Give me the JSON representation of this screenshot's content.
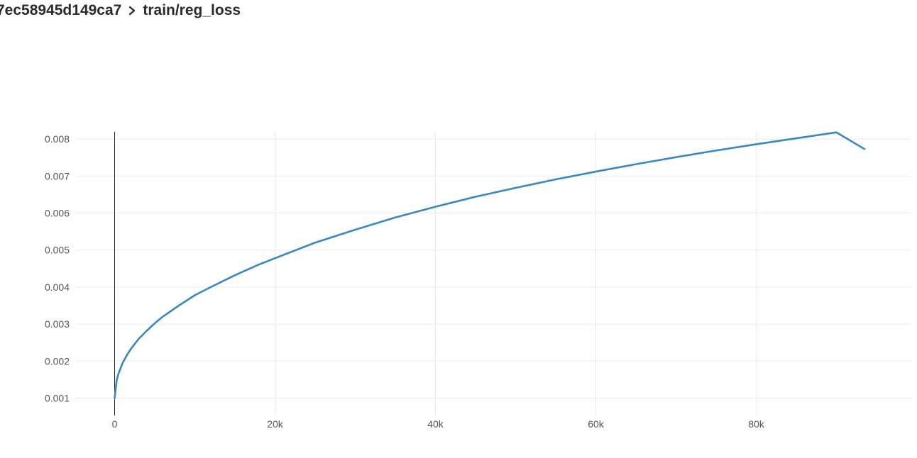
{
  "breadcrumb": {
    "run_id": "7ec58945d149ca7",
    "separator_icon": "chevron-right-icon",
    "metric": "train/reg_loss"
  },
  "colors": {
    "line": "#3a87c1",
    "grid": "#ebebeb",
    "axis": "#222222",
    "tick_text": "#555555",
    "title_text": "#2b2b2b"
  },
  "chart_data": {
    "type": "line",
    "title": "",
    "xlabel": "",
    "ylabel": "",
    "xlim": [
      -2000,
      97500
    ],
    "ylim": [
      0.0008,
      0.0082
    ],
    "x_ticks": [
      0,
      20000,
      40000,
      60000,
      80000
    ],
    "x_tick_labels": [
      "0",
      "20k",
      "40k",
      "60k",
      "80k"
    ],
    "y_ticks": [
      0.001,
      0.002,
      0.003,
      0.004,
      0.005,
      0.006,
      0.007,
      0.008
    ],
    "y_tick_labels": [
      "0.001",
      "0.002",
      "0.003",
      "0.004",
      "0.005",
      "0.006",
      "0.007",
      "0.008"
    ],
    "grid": true,
    "legend": "none",
    "series": [
      {
        "x": [
          0,
          250,
          500,
          1000,
          1500,
          2000,
          3000,
          4000,
          5000,
          6000,
          8000,
          10000,
          12000,
          15000,
          18000,
          20000,
          25000,
          30000,
          35000,
          40000,
          45000,
          50000,
          55000,
          60000,
          65000,
          70000,
          75000,
          80000,
          85000,
          90000,
          93500
        ],
        "y": [
          0.001,
          0.00148,
          0.00167,
          0.00195,
          0.00215,
          0.00232,
          0.0026,
          0.00282,
          0.00302,
          0.0032,
          0.0035,
          0.00378,
          0.004,
          0.00432,
          0.00461,
          0.00478,
          0.0052,
          0.00555,
          0.00588,
          0.00617,
          0.00644,
          0.00668,
          0.00691,
          0.00712,
          0.00732,
          0.00751,
          0.00769,
          0.00786,
          0.00802,
          0.00818,
          0.00773
        ]
      }
    ]
  }
}
